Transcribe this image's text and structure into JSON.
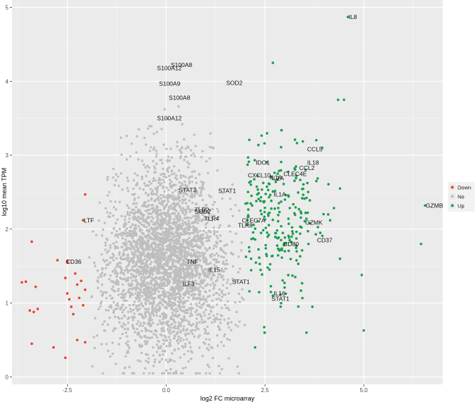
{
  "chart_data": {
    "type": "scatter",
    "title": "",
    "xlabel": "log2 FC microarray",
    "ylabel": "log10 mean TPM",
    "xlim": [
      -3.9,
      7.0
    ],
    "ylim": [
      -0.1,
      5.1
    ],
    "x_ticks": [
      -2.5,
      0.0,
      2.5,
      5.0
    ],
    "x_tick_labels": [
      "-2.5",
      "0.0",
      "2.5",
      "5.0"
    ],
    "y_ticks": [
      0,
      1,
      2,
      3,
      4,
      5
    ],
    "y_tick_labels": [
      "0",
      "1",
      "2",
      "3",
      "4",
      "5"
    ],
    "grid": true,
    "legend_position": "right",
    "series": [
      {
        "name": "Down",
        "color": "#E8412B",
        "points": [
          [
            -3.65,
            1.28
          ],
          [
            -3.55,
            1.29
          ],
          [
            -3.45,
            0.9
          ],
          [
            -3.4,
            1.83
          ],
          [
            -3.35,
            0.88
          ],
          [
            -3.3,
            1.22
          ],
          [
            -3.25,
            0.92
          ],
          [
            -3.4,
            0.45
          ],
          [
            -2.85,
            0.4
          ],
          [
            -2.75,
            1.58
          ],
          [
            -2.55,
            0.26
          ],
          [
            -2.5,
            1.55
          ],
          [
            -2.55,
            1.34
          ],
          [
            -2.5,
            1.13
          ],
          [
            -2.45,
            1.05
          ],
          [
            -2.4,
            0.95
          ],
          [
            -2.3,
            1.4
          ],
          [
            -2.35,
            0.85
          ],
          [
            -2.25,
            0.5
          ],
          [
            -2.2,
            1.07
          ],
          [
            -2.15,
            1.3
          ],
          [
            -2.1,
            0.97
          ],
          [
            -2.05,
            1.18
          ],
          [
            -2.05,
            0.47
          ],
          [
            -2.05,
            2.47
          ],
          [
            -2.25,
            1.25
          ],
          [
            -2.5,
            1.57
          ],
          [
            -2.1,
            2.12
          ]
        ]
      },
      {
        "name": "No",
        "color": "#BEBEBE",
        "points": []
      },
      {
        "name": "Up",
        "color": "#1E9E50",
        "points": [
          [
            4.6,
            4.87
          ],
          [
            2.7,
            4.25
          ],
          [
            4.35,
            3.75
          ],
          [
            4.5,
            3.75
          ],
          [
            6.55,
            2.32
          ],
          [
            6.45,
            1.8
          ],
          [
            5.0,
            0.63
          ],
          [
            4.95,
            1.38
          ],
          [
            4.4,
            1.6
          ],
          [
            4.4,
            2.55
          ],
          [
            4.1,
            2.2
          ],
          [
            4.15,
            2.12
          ],
          [
            3.95,
            3.1
          ],
          [
            3.6,
            1.8
          ],
          [
            3.55,
            0.6
          ],
          [
            3.7,
            0.95
          ],
          [
            3.9,
            1.95
          ],
          [
            3.8,
            2.65
          ],
          [
            2.25,
            0.4
          ],
          [
            2.15,
            1.6
          ],
          [
            2.65,
            1.15
          ],
          [
            2.7,
            1.1
          ]
        ]
      }
    ],
    "labels": [
      {
        "text": "IL8",
        "x": 4.6,
        "y": 4.87
      },
      {
        "text": "S100A8",
        "x": 0.1,
        "y": 4.22
      },
      {
        "text": "S100A12",
        "x": -0.25,
        "y": 4.18
      },
      {
        "text": "S100A9",
        "x": -0.2,
        "y": 3.97
      },
      {
        "text": "SOD2",
        "x": 1.5,
        "y": 3.98
      },
      {
        "text": "S100A8",
        "x": 0.05,
        "y": 3.78
      },
      {
        "text": "S100A12",
        "x": -0.25,
        "y": 3.5
      },
      {
        "text": "CCL5",
        "x": 3.55,
        "y": 3.08
      },
      {
        "text": "IDO1",
        "x": 2.25,
        "y": 2.9
      },
      {
        "text": "IL18",
        "x": 3.55,
        "y": 2.9
      },
      {
        "text": "CCL2",
        "x": 3.35,
        "y": 2.83
      },
      {
        "text": "CLEC4E",
        "x": 2.95,
        "y": 2.75
      },
      {
        "text": "CXCL10",
        "x": 2.05,
        "y": 2.73
      },
      {
        "text": "IL1A",
        "x": 2.6,
        "y": 2.7
      },
      {
        "text": "IL1A",
        "x": 2.65,
        "y": 2.69
      },
      {
        "text": "STAT3",
        "x": 0.3,
        "y": 2.53
      },
      {
        "text": "STAT1",
        "x": 1.3,
        "y": 2.52
      },
      {
        "text": "IL1A",
        "x": 2.7,
        "y": 2.47
      },
      {
        "text": "GZMB",
        "x": 6.55,
        "y": 2.32
      },
      {
        "text": "LTF",
        "x": -2.1,
        "y": 2.12
      },
      {
        "text": "TLR2",
        "x": 0.7,
        "y": 2.26
      },
      {
        "text": "SOD2",
        "x": 0.7,
        "y": 2.24
      },
      {
        "text": "TLR4",
        "x": 0.95,
        "y": 2.14
      },
      {
        "text": "CLEC7A",
        "x": 1.9,
        "y": 2.12
      },
      {
        "text": "TLR8",
        "x": 1.8,
        "y": 2.05
      },
      {
        "text": "GZMK",
        "x": 3.5,
        "y": 2.09
      },
      {
        "text": "CD37",
        "x": 3.8,
        "y": 1.85
      },
      {
        "text": "CD80",
        "x": 2.95,
        "y": 1.8
      },
      {
        "text": "CD36",
        "x": -2.55,
        "y": 1.56
      },
      {
        "text": "TNF",
        "x": 0.5,
        "y": 1.56
      },
      {
        "text": "IL15",
        "x": 1.05,
        "y": 1.45
      },
      {
        "text": "STAT1",
        "x": 1.65,
        "y": 1.29
      },
      {
        "text": "ILF3",
        "x": 0.4,
        "y": 1.26
      },
      {
        "text": "IL16",
        "x": 2.7,
        "y": 1.13
      },
      {
        "text": "STAT1",
        "x": 2.65,
        "y": 1.06
      }
    ]
  }
}
